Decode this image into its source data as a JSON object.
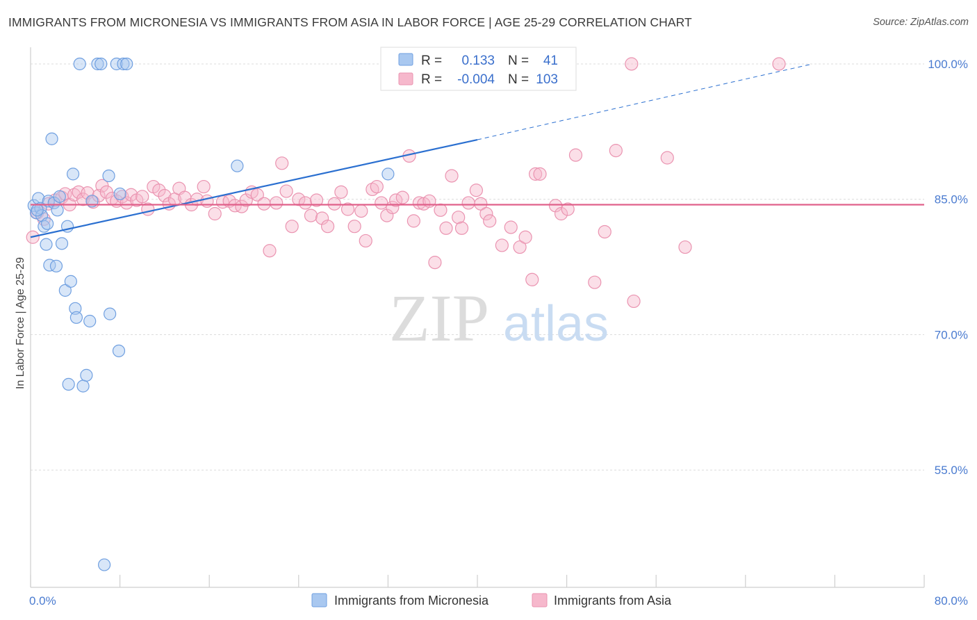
{
  "title": "IMMIGRANTS FROM MICRONESIA VS IMMIGRANTS FROM ASIA IN LABOR FORCE | AGE 25-29 CORRELATION CHART",
  "source": "Source: ZipAtlas.com",
  "watermark": {
    "zip": "ZIP",
    "atlas": "atlas"
  },
  "colors": {
    "micronesia_fill": "#a9c8f0",
    "micronesia_stroke": "#6f9fe0",
    "micronesia_line": "#2a6fd0",
    "asia_fill": "#f6b8cc",
    "asia_stroke": "#ea93b0",
    "asia_line": "#e0608a",
    "tick_label": "#4a7bd0"
  },
  "legend": {
    "r_label": "R =",
    "n_label": "N =",
    "rows": [
      {
        "r": "0.133",
        "n": "41"
      },
      {
        "r": "-0.004",
        "n": "103"
      }
    ]
  },
  "chart_data": {
    "type": "scatter",
    "ylabel": "In Labor Force | Age 25-29",
    "xlim": [
      0,
      80
    ],
    "ylim": [
      42,
      101
    ],
    "x_tick_labels": [
      "0.0%",
      "80.0%"
    ],
    "y_ticks": [
      55,
      70,
      85,
      100
    ],
    "y_tick_labels": [
      "55.0%",
      "70.0%",
      "85.0%",
      "100.0%"
    ],
    "grid": "horizontal dashed",
    "legend_position": "top-center",
    "series": [
      {
        "name": "Immigrants from Micronesia",
        "color": "#6f9fe0",
        "trend": {
          "x": [
            0,
            40
          ],
          "y": [
            80.8,
            91.6
          ],
          "dashed_extension_to": [
            70,
            100
          ]
        },
        "points": [
          [
            0.3,
            84.3
          ],
          [
            0.5,
            83.5
          ],
          [
            0.7,
            85.1
          ],
          [
            0.9,
            84.0
          ],
          [
            1.0,
            83.2
          ],
          [
            1.2,
            82.0
          ],
          [
            1.4,
            80.0
          ],
          [
            1.6,
            84.8
          ],
          [
            1.7,
            77.7
          ],
          [
            1.9,
            91.7
          ],
          [
            2.1,
            84.6
          ],
          [
            2.3,
            77.6
          ],
          [
            2.4,
            83.8
          ],
          [
            2.6,
            85.3
          ],
          [
            2.8,
            80.1
          ],
          [
            3.1,
            74.9
          ],
          [
            3.3,
            82.0
          ],
          [
            3.4,
            64.5
          ],
          [
            3.6,
            75.9
          ],
          [
            3.8,
            87.8
          ],
          [
            4.0,
            72.9
          ],
          [
            4.1,
            71.9
          ],
          [
            4.4,
            100.0
          ],
          [
            4.7,
            64.3
          ],
          [
            5.0,
            65.5
          ],
          [
            5.3,
            71.5
          ],
          [
            5.5,
            84.8
          ],
          [
            6.0,
            100.0
          ],
          [
            6.3,
            100.0
          ],
          [
            6.6,
            44.5
          ],
          [
            7.0,
            87.6
          ],
          [
            7.1,
            72.3
          ],
          [
            7.7,
            100.0
          ],
          [
            7.9,
            68.2
          ],
          [
            8.0,
            85.6
          ],
          [
            8.3,
            100.0
          ],
          [
            8.6,
            100.0
          ],
          [
            18.5,
            88.7
          ],
          [
            32.0,
            87.8
          ],
          [
            0.6,
            83.8
          ],
          [
            1.5,
            82.3
          ]
        ]
      },
      {
        "name": "Immigrants from Asia",
        "color": "#ea93b0",
        "trend": {
          "x": [
            0,
            80
          ],
          "y": [
            84.4,
            84.4
          ]
        },
        "points": [
          [
            0.2,
            80.8
          ],
          [
            0.6,
            83.5
          ],
          [
            1.2,
            82.8
          ],
          [
            1.6,
            84.5
          ],
          [
            2.2,
            84.9
          ],
          [
            2.8,
            85.2
          ],
          [
            3.1,
            85.6
          ],
          [
            3.5,
            84.4
          ],
          [
            3.9,
            85.5
          ],
          [
            4.3,
            85.8
          ],
          [
            4.7,
            85.0
          ],
          [
            5.1,
            85.7
          ],
          [
            5.6,
            84.7
          ],
          [
            6.1,
            85.4
          ],
          [
            6.4,
            86.5
          ],
          [
            6.8,
            85.8
          ],
          [
            7.3,
            85.1
          ],
          [
            7.7,
            84.8
          ],
          [
            8.2,
            85.3
          ],
          [
            8.6,
            84.6
          ],
          [
            9.0,
            85.5
          ],
          [
            9.5,
            84.9
          ],
          [
            10.0,
            85.3
          ],
          [
            10.5,
            83.9
          ],
          [
            11.0,
            86.4
          ],
          [
            11.5,
            86.0
          ],
          [
            12.0,
            85.4
          ],
          [
            12.4,
            84.5
          ],
          [
            12.9,
            85.0
          ],
          [
            13.3,
            86.2
          ],
          [
            13.8,
            85.2
          ],
          [
            14.4,
            84.4
          ],
          [
            14.9,
            85.0
          ],
          [
            15.5,
            86.4
          ],
          [
            15.8,
            84.8
          ],
          [
            16.5,
            83.4
          ],
          [
            17.2,
            84.7
          ],
          [
            17.8,
            84.8
          ],
          [
            18.3,
            84.3
          ],
          [
            18.9,
            84.2
          ],
          [
            19.3,
            84.9
          ],
          [
            19.8,
            85.8
          ],
          [
            20.3,
            85.5
          ],
          [
            20.9,
            84.5
          ],
          [
            21.4,
            79.3
          ],
          [
            22.0,
            84.6
          ],
          [
            22.5,
            89.0
          ],
          [
            22.9,
            85.9
          ],
          [
            23.4,
            82.0
          ],
          [
            24.0,
            85.0
          ],
          [
            24.6,
            84.6
          ],
          [
            25.1,
            83.2
          ],
          [
            25.6,
            84.9
          ],
          [
            26.1,
            82.9
          ],
          [
            26.6,
            82.0
          ],
          [
            27.2,
            84.5
          ],
          [
            27.8,
            85.8
          ],
          [
            28.4,
            83.9
          ],
          [
            29.0,
            82.0
          ],
          [
            29.6,
            83.7
          ],
          [
            30.0,
            80.4
          ],
          [
            30.6,
            86.1
          ],
          [
            31.0,
            86.4
          ],
          [
            31.4,
            84.6
          ],
          [
            31.9,
            83.2
          ],
          [
            32.4,
            84.1
          ],
          [
            32.7,
            84.9
          ],
          [
            33.3,
            85.2
          ],
          [
            33.9,
            89.8
          ],
          [
            34.3,
            82.6
          ],
          [
            34.8,
            84.6
          ],
          [
            35.2,
            84.5
          ],
          [
            35.7,
            84.8
          ],
          [
            36.2,
            78.0
          ],
          [
            36.7,
            83.8
          ],
          [
            37.2,
            81.8
          ],
          [
            37.7,
            87.6
          ],
          [
            38.3,
            83.0
          ],
          [
            38.6,
            81.8
          ],
          [
            39.2,
            84.6
          ],
          [
            39.9,
            86.0
          ],
          [
            40.3,
            84.5
          ],
          [
            40.8,
            83.4
          ],
          [
            41.1,
            82.6
          ],
          [
            42.2,
            79.9
          ],
          [
            43.0,
            81.9
          ],
          [
            43.8,
            79.7
          ],
          [
            44.3,
            80.8
          ],
          [
            44.9,
            76.1
          ],
          [
            45.2,
            87.8
          ],
          [
            45.6,
            87.8
          ],
          [
            47.0,
            84.3
          ],
          [
            47.5,
            83.4
          ],
          [
            48.1,
            83.9
          ],
          [
            48.8,
            89.9
          ],
          [
            50.5,
            75.8
          ],
          [
            51.4,
            81.4
          ],
          [
            52.4,
            90.4
          ],
          [
            53.8,
            100.0
          ],
          [
            54.0,
            73.7
          ],
          [
            57.0,
            89.6
          ],
          [
            58.6,
            79.7
          ],
          [
            67.0,
            100.0
          ]
        ]
      }
    ]
  }
}
